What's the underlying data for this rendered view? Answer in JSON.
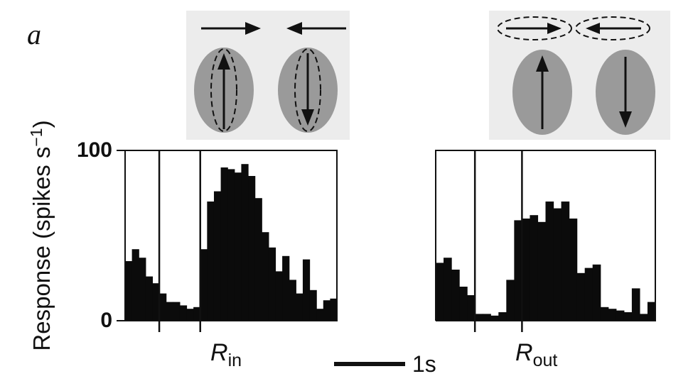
{
  "figure": {
    "panel_label": "a",
    "ylabel_main": "Response (spikes s",
    "ylabel_sup": "−1",
    "ylabel_close": ")",
    "y_tick_top": "100",
    "y_tick_bottom": "0",
    "scale_bar_label": "1s"
  },
  "chart_data": [
    {
      "type": "bar",
      "condition_main": "R",
      "condition_sub": "in",
      "ylabel": "Response (spikes s−1)",
      "ylim": [
        0,
        100
      ],
      "yticks": [
        0,
        100
      ],
      "bin_width_s": 0.2,
      "stimulus_on_s": 1.0,
      "stimulus_off_s": 2.2,
      "values": [
        35,
        42,
        37,
        26,
        22,
        16,
        11,
        11,
        9,
        7,
        8,
        42,
        70,
        76,
        90,
        89,
        87,
        92,
        85,
        72,
        52,
        43,
        29,
        38,
        24,
        16,
        36,
        18,
        7,
        12,
        13
      ]
    },
    {
      "type": "bar",
      "condition_main": "R",
      "condition_sub": "out",
      "ylabel": "Response (spikes s−1)",
      "ylim": [
        0,
        100
      ],
      "yticks": [
        0,
        100
      ],
      "bin_width_s": 0.2,
      "stimulus_on_s": 1.0,
      "stimulus_off_s": 2.2,
      "values": [
        34,
        37,
        30,
        20,
        15,
        4,
        4,
        3,
        5,
        24,
        59,
        60,
        62,
        58,
        70,
        66,
        70,
        60,
        28,
        31,
        33,
        8,
        7,
        6,
        5,
        19,
        4,
        11
      ]
    }
  ]
}
